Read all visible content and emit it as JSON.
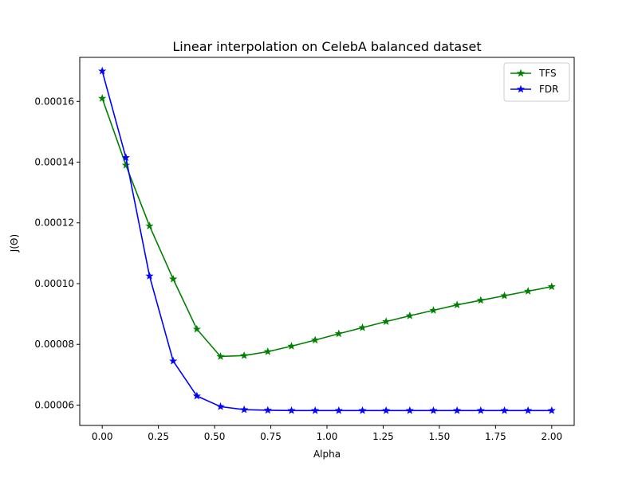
{
  "chart_data": {
    "type": "line",
    "title": "Linear interpolation on CelebA balanced dataset",
    "xlabel": "Alpha",
    "ylabel": "J(Θ)",
    "xlim": [
      -0.1,
      2.1
    ],
    "ylim": [
      5.33e-05,
      0.0001745
    ],
    "x_ticks": [
      0.0,
      0.25,
      0.5,
      0.75,
      1.0,
      1.25,
      1.5,
      1.75,
      2.0
    ],
    "x_tick_labels": [
      "0.00",
      "0.25",
      "0.50",
      "0.75",
      "1.00",
      "1.25",
      "1.50",
      "1.75",
      "2.00"
    ],
    "y_ticks": [
      6e-05,
      8e-05,
      0.0001,
      0.00012,
      0.00014,
      0.00016
    ],
    "y_tick_labels": [
      "0.00006",
      "0.00008",
      "0.00010",
      "0.00012",
      "0.00014",
      "0.00016"
    ],
    "grid": false,
    "legend_position": "top-right",
    "x": [
      0.0,
      0.1053,
      0.2105,
      0.3158,
      0.4211,
      0.5263,
      0.6316,
      0.7368,
      0.8421,
      0.9474,
      1.0526,
      1.1579,
      1.2632,
      1.3684,
      1.4737,
      1.5789,
      1.6842,
      1.7895,
      1.8947,
      2.0
    ],
    "series": [
      {
        "name": "TFS",
        "color": "#008000",
        "marker": "star",
        "values": [
          0.000161,
          0.000139,
          0.000119,
          0.0001015,
          8.5e-05,
          7.6e-05,
          7.63e-05,
          7.76e-05,
          7.94e-05,
          8.14e-05,
          8.35e-05,
          8.55e-05,
          8.75e-05,
          8.94e-05,
          9.12e-05,
          9.3e-05,
          9.45e-05,
          9.6e-05,
          9.75e-05,
          9.9e-05
        ]
      },
      {
        "name": "FDR",
        "color": "#0000ff",
        "marker": "star",
        "values": [
          0.00017,
          0.0001415,
          0.0001025,
          7.45e-05,
          6.3e-05,
          5.95e-05,
          5.85e-05,
          5.83e-05,
          5.82e-05,
          5.82e-05,
          5.82e-05,
          5.82e-05,
          5.82e-05,
          5.82e-05,
          5.82e-05,
          5.82e-05,
          5.82e-05,
          5.82e-05,
          5.82e-05,
          5.82e-05
        ]
      }
    ]
  }
}
